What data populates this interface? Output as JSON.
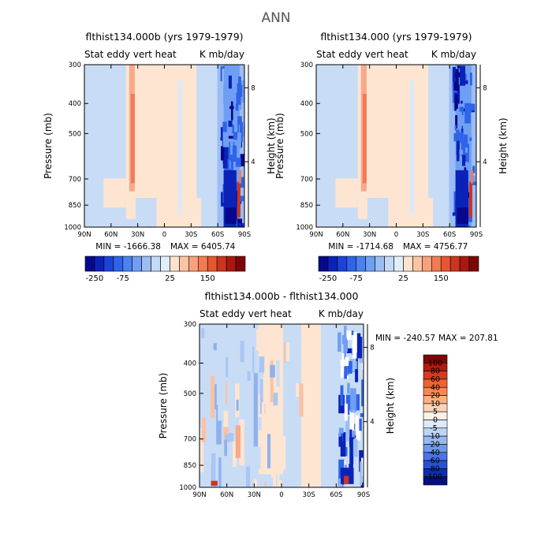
{
  "page_title": "ANN",
  "chart_data": [
    {
      "type": "heatmap",
      "title": "flthist134.000b (yrs 1979-1979)",
      "left_string": "Stat eddy vert heat",
      "right_string": "K mb/day",
      "ylabel": "Pressure (mb)",
      "y2label": "Height (km)",
      "x_ticks": [
        "90N",
        "60N",
        "30N",
        "0",
        "30S",
        "60S",
        "90S"
      ],
      "y_ticks": [
        "300",
        "400",
        "500",
        "700",
        "850",
        "1000"
      ],
      "y2_ticks": [
        "8",
        "4"
      ],
      "min_label": "MIN = -1666.38",
      "max_label": "MAX = 6405.74",
      "colorbar": {
        "orientation": "horizontal",
        "levels": [
          "-250",
          "-75",
          "25",
          "150"
        ],
        "colors": [
          "#08088c",
          "#0a22b8",
          "#1b43d8",
          "#2f63e8",
          "#4a82f0",
          "#6f9ff2",
          "#9cbdf4",
          "#c4d9f6",
          "#e2edfa",
          "#fde2cf",
          "#fbc4a5",
          "#f7a17a",
          "#f27b53",
          "#e55631",
          "#cc341d",
          "#a8180f",
          "#7d0707"
        ]
      }
    },
    {
      "type": "heatmap",
      "title": "flthist134.000 (yrs 1979-1979)",
      "left_string": "Stat eddy vert heat",
      "right_string": "K mb/day",
      "ylabel": "Pressure (mb)",
      "y2label": "Height (km)",
      "x_ticks": [
        "90N",
        "60N",
        "30N",
        "0",
        "30S",
        "60S",
        "90S"
      ],
      "y_ticks": [
        "300",
        "400",
        "500",
        "700",
        "850",
        "1000"
      ],
      "y2_ticks": [
        "8",
        "4"
      ],
      "min_label": "MIN = -1714.68",
      "max_label": "MAX = 4756.77",
      "colorbar": {
        "orientation": "horizontal",
        "levels": [
          "-250",
          "-75",
          "25",
          "150"
        ],
        "colors": [
          "#08088c",
          "#0a22b8",
          "#1b43d8",
          "#2f63e8",
          "#4a82f0",
          "#6f9ff2",
          "#9cbdf4",
          "#c4d9f6",
          "#e2edfa",
          "#fde2cf",
          "#fbc4a5",
          "#f7a17a",
          "#f27b53",
          "#e55631",
          "#cc341d",
          "#a8180f",
          "#7d0707"
        ]
      }
    },
    {
      "type": "heatmap",
      "title": "flthist134.000b - flthist134.000",
      "left_string": "Stat eddy vert heat",
      "right_string": "K mb/day",
      "ylabel": "Pressure (mb)",
      "y2label": "Height (km)",
      "x_ticks": [
        "90N",
        "60N",
        "30N",
        "0",
        "30S",
        "60S",
        "90S"
      ],
      "y_ticks": [
        "300",
        "400",
        "500",
        "700",
        "850",
        "1000"
      ],
      "y2_ticks": [
        "8",
        "4"
      ],
      "min_label": "MIN = -240.57",
      "max_label": "MAX = 207.81",
      "colorbar": {
        "orientation": "vertical",
        "levels": [
          "100",
          "80",
          "60",
          "40",
          "20",
          "10",
          "5",
          "0",
          "-5",
          "-10",
          "-20",
          "-40",
          "-60",
          "-80",
          "-100"
        ],
        "colors": [
          "#7d0707",
          "#b31a10",
          "#d63a1f",
          "#ef6232",
          "#f7884f",
          "#fbb07f",
          "#fdd3b8",
          "#fff0e6",
          "#dcebfb",
          "#bcd5f7",
          "#97b8f3",
          "#6e97ef",
          "#4a74e8",
          "#2650d8",
          "#0b2fb4",
          "#07107f"
        ]
      }
    }
  ]
}
